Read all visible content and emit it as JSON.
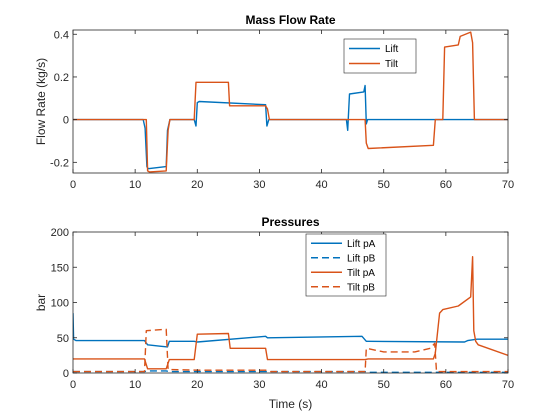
{
  "colors": {
    "lift": "#0072BD",
    "tilt": "#D95319"
  },
  "chart_data": [
    {
      "type": "line",
      "title": "Mass Flow Rate",
      "xlabel": "",
      "ylabel": "Flow Rate (kg/s)",
      "xlim": [
        0,
        70
      ],
      "ylim": [
        -0.25,
        0.42
      ],
      "xticks": [
        0,
        10,
        20,
        30,
        40,
        50,
        60,
        70
      ],
      "yticks": [
        -0.2,
        0,
        0.2,
        0.4
      ],
      "ytick_labels": [
        "-0.2",
        "0",
        "0.2",
        "0.4"
      ],
      "grid": false,
      "legend": "top-right",
      "series": [
        {
          "name": "Lift",
          "color": "lift",
          "dash": "solid",
          "x": [
            0,
            11.3,
            11.6,
            11.9,
            12.1,
            15.0,
            15.2,
            15.6,
            19.5,
            19.8,
            20.0,
            20.3,
            31.0,
            31.2,
            31.5,
            44.0,
            44.2,
            44.5,
            46.8,
            47.0,
            47.2,
            47.4,
            70.0
          ],
          "y": [
            0,
            0,
            -0.04,
            -0.22,
            -0.23,
            -0.22,
            -0.05,
            0,
            0,
            -0.03,
            0.08,
            0.085,
            0.07,
            -0.03,
            0,
            0,
            -0.05,
            0.12,
            0.13,
            0.16,
            -0.02,
            0,
            0
          ]
        },
        {
          "name": "Tilt",
          "color": "tilt",
          "dash": "solid",
          "x": [
            0,
            11.8,
            12.0,
            12.3,
            15.0,
            15.3,
            15.6,
            19.5,
            19.8,
            25.0,
            25.2,
            31.0,
            31.3,
            31.6,
            47.0,
            47.2,
            47.5,
            58.0,
            58.3,
            59.5,
            59.8,
            62.0,
            62.3,
            64.0,
            64.3,
            64.6,
            70.0
          ],
          "y": [
            0,
            0,
            -0.24,
            -0.245,
            -0.24,
            -0.05,
            0,
            0,
            0.175,
            0.175,
            0.065,
            0.065,
            0.05,
            0,
            0,
            -0.11,
            -0.135,
            -0.12,
            0,
            0,
            0.34,
            0.35,
            0.39,
            0.41,
            0.36,
            0,
            0
          ]
        }
      ]
    },
    {
      "type": "line",
      "title": "Pressures",
      "xlabel": "Time (s)",
      "ylabel": "bar",
      "xlim": [
        0,
        70
      ],
      "ylim": [
        0,
        200
      ],
      "xticks": [
        0,
        10,
        20,
        30,
        40,
        50,
        60,
        70
      ],
      "yticks": [
        0,
        50,
        100,
        150,
        200
      ],
      "ytick_labels": [
        "0",
        "50",
        "100",
        "150",
        "200"
      ],
      "grid": false,
      "legend": "top-right",
      "series": [
        {
          "name": "Lift pA",
          "color": "lift",
          "dash": "solid",
          "x": [
            0,
            0.1,
            0.5,
            11.5,
            12.0,
            14.0,
            15.2,
            15.5,
            19.5,
            20.0,
            31.0,
            31.3,
            46.5,
            47.2,
            47.5,
            63.0,
            63.5,
            65.0,
            70.0
          ],
          "y": [
            85,
            48,
            46,
            46,
            40,
            38,
            37,
            45,
            45,
            44,
            52,
            50,
            52,
            45,
            45,
            44,
            46,
            48,
            48
          ]
        },
        {
          "name": "Lift pB",
          "color": "lift",
          "dash": "dashed",
          "x": [
            0,
            11.5,
            12.0,
            15.0,
            15.5,
            47.0,
            47.5,
            70.0
          ],
          "y": [
            2,
            2,
            3,
            3,
            2,
            2,
            1,
            1
          ]
        },
        {
          "name": "Tilt pA",
          "color": "tilt",
          "dash": "solid",
          "x": [
            0,
            0.5,
            11.5,
            12.0,
            15.0,
            15.5,
            19.5,
            20.0,
            25.0,
            25.3,
            31.0,
            31.3,
            47.0,
            47.5,
            58.0,
            58.3,
            59.0,
            59.5,
            62.0,
            64.0,
            64.3,
            64.5,
            64.8,
            65.2,
            70.0
          ],
          "y": [
            20,
            20,
            20,
            6,
            6,
            19,
            19,
            55,
            56,
            35,
            35,
            19,
            19,
            20,
            20,
            28,
            85,
            90,
            95,
            108,
            165,
            60,
            45,
            40,
            25
          ]
        },
        {
          "name": "Tilt pB",
          "color": "tilt",
          "dash": "dashed",
          "x": [
            0,
            11.5,
            11.8,
            15.0,
            15.3,
            20.0,
            31.0,
            31.5,
            47.0,
            47.2,
            50.0,
            55.0,
            57.5,
            58.2,
            58.5,
            70.0
          ],
          "y": [
            2,
            2,
            60,
            62,
            5,
            4,
            4,
            2,
            2,
            35,
            30,
            30,
            35,
            42,
            2,
            2
          ]
        }
      ]
    }
  ]
}
